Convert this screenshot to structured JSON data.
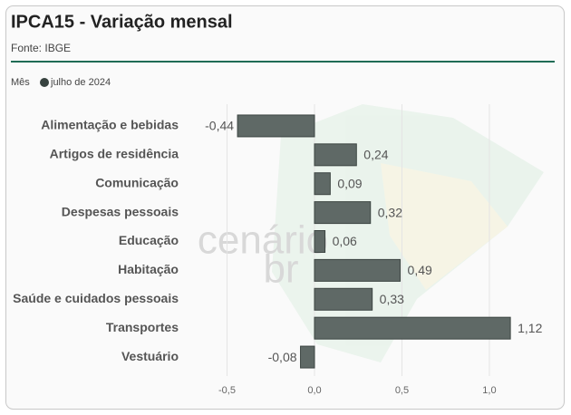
{
  "chart_data": {
    "type": "barh",
    "title": "IPCA15 - Variação mensal",
    "subtitle": "Fonte: IBGE",
    "legend_title": "Mês",
    "watermark": [
      "cenário",
      "br"
    ],
    "categories": [
      "Alimentação e bebidas",
      "Artigos de residência",
      "Comunicação",
      "Despesas pessoais",
      "Educação",
      "Habitação",
      "Saúde e cuidados pessoais",
      "Transportes",
      "Vestuário"
    ],
    "series": [
      {
        "name": "julho de 2024",
        "color": "#5f6966",
        "values": [
          -0.44,
          0.24,
          0.09,
          0.32,
          0.06,
          0.49,
          0.33,
          1.12,
          -0.08
        ],
        "value_labels": [
          "-0,44",
          "0,24",
          "0,09",
          "0,32",
          "0,06",
          "0,49",
          "0,33",
          "1,12",
          "-0,08"
        ]
      }
    ],
    "xlim": [
      -0.6,
      1.35
    ],
    "xticks": [
      {
        "value": -0.5,
        "label": "-0,5"
      },
      {
        "value": 0,
        "label": "0,0"
      },
      {
        "value": 0.5,
        "label": "0,5"
      },
      {
        "value": 1,
        "label": "1,0"
      }
    ],
    "grid": true
  }
}
